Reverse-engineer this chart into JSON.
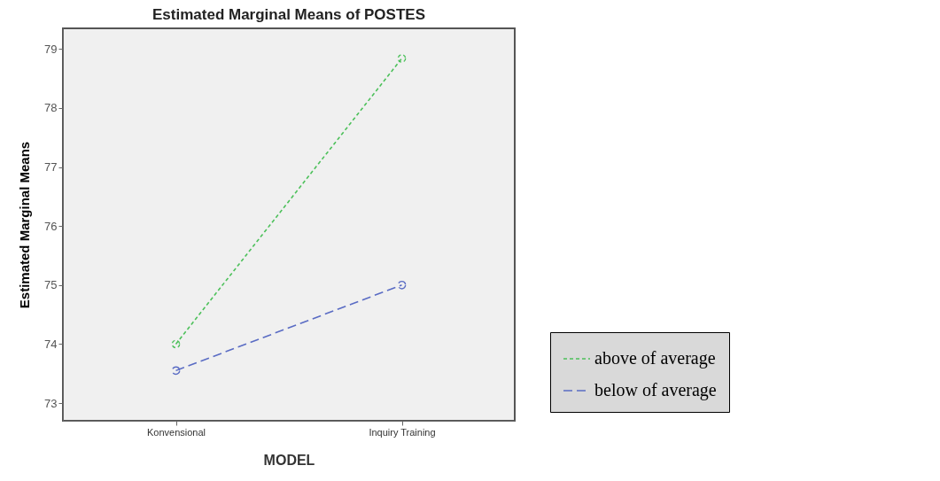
{
  "chart_data": {
    "type": "line",
    "title": "Estimated Marginal Means of POSTES",
    "xlabel": "MODEL",
    "ylabel": "Estimated Marginal Means",
    "categories": [
      "Konvensional",
      "Inquiry Training"
    ],
    "series": [
      {
        "name": "above of average",
        "color": "#4cc05a",
        "line_style": "dotted",
        "values": [
          74.0,
          78.84
        ]
      },
      {
        "name": "below of average",
        "color": "#5a6cc4",
        "line_style": "dashed",
        "values": [
          73.55,
          75.0
        ]
      }
    ],
    "ylim": [
      72.7,
      79.35
    ],
    "yticks": [
      73,
      74,
      75,
      76,
      77,
      78,
      79
    ],
    "grid": false,
    "legend": "bottom right",
    "marker": "circle"
  }
}
